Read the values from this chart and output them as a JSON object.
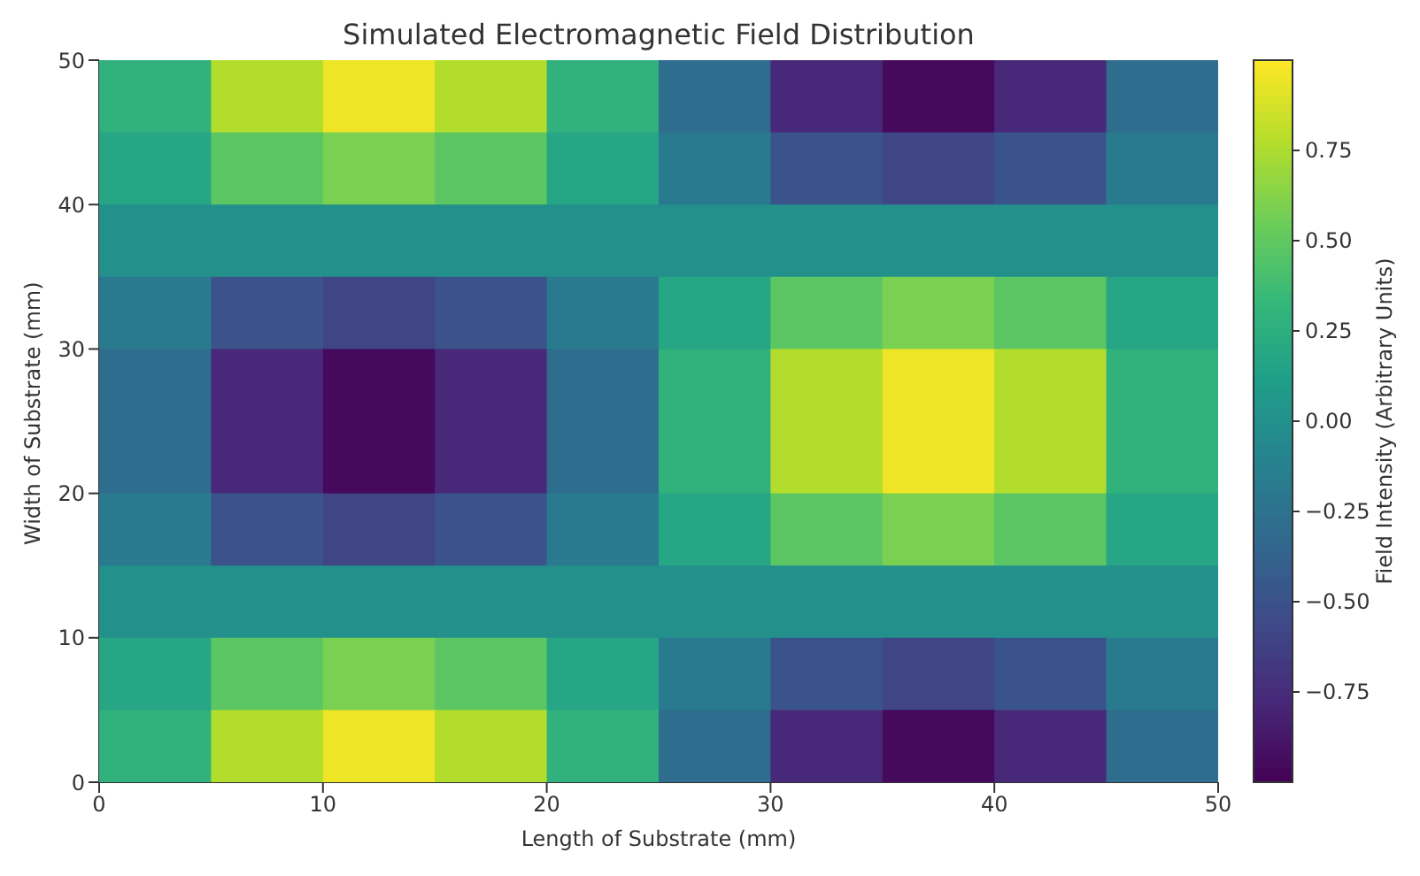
{
  "chart_data": {
    "type": "heatmap",
    "title": "Simulated Electromagnetic Field Distribution",
    "xlabel": "Length of Substrate (mm)",
    "ylabel": "Width of Substrate (mm)",
    "clabel": "Field Intensity (Arbitrary Units)",
    "x": [
      2.5,
      7.5,
      12.5,
      17.5,
      22.5,
      27.5,
      32.5,
      37.5,
      42.5,
      47.5
    ],
    "y": [
      47.5,
      42.5,
      37.5,
      32.5,
      27.5,
      22.5,
      17.5,
      12.5,
      7.5,
      2.5
    ],
    "xlim": [
      0,
      50
    ],
    "ylim": [
      0,
      50
    ],
    "xticks": [
      0,
      10,
      20,
      30,
      40,
      50
    ],
    "yticks": [
      0,
      10,
      20,
      30,
      40,
      50
    ],
    "clim": [
      -1,
      1
    ],
    "cticks": [
      {
        "value": -0.75,
        "label": "−0.75"
      },
      {
        "value": -0.5,
        "label": "−0.50"
      },
      {
        "value": -0.25,
        "label": "−0.25"
      },
      {
        "value": 0,
        "label": "0.00"
      },
      0.25,
      {
        "value": 0.5,
        "label": "0.50"
      },
      0.75
    ],
    "grid": false,
    "cells": [
      [
        0.29,
        0.77,
        0.95,
        0.77,
        0.29,
        -0.29,
        -0.77,
        -0.95,
        -0.77,
        -0.29
      ],
      [
        0.18,
        0.48,
        0.59,
        0.48,
        0.18,
        -0.18,
        -0.48,
        -0.59,
        -0.48,
        -0.18
      ],
      [
        0,
        0,
        0,
        0,
        0,
        0,
        0,
        0,
        0,
        0
      ],
      [
        -0.18,
        -0.48,
        -0.59,
        -0.48,
        -0.18,
        0.18,
        0.48,
        0.59,
        0.48,
        0.18
      ],
      [
        -0.29,
        -0.77,
        -0.95,
        -0.77,
        -0.29,
        0.29,
        0.77,
        0.95,
        0.77,
        0.29
      ],
      [
        -0.29,
        -0.77,
        -0.95,
        -0.77,
        -0.29,
        0.29,
        0.77,
        0.95,
        0.77,
        0.29
      ],
      [
        -0.18,
        -0.48,
        -0.59,
        -0.48,
        -0.18,
        0.18,
        0.48,
        0.59,
        0.48,
        0.18
      ],
      [
        0,
        0,
        0,
        0,
        0,
        0,
        0,
        0,
        0,
        0
      ],
      [
        0.18,
        0.48,
        0.59,
        0.48,
        0.18,
        -0.18,
        -0.48,
        -0.59,
        -0.48,
        -0.18
      ],
      [
        0.29,
        0.77,
        0.95,
        0.77,
        0.29,
        -0.29,
        -0.77,
        -0.95,
        -0.77,
        -0.29
      ]
    ]
  }
}
